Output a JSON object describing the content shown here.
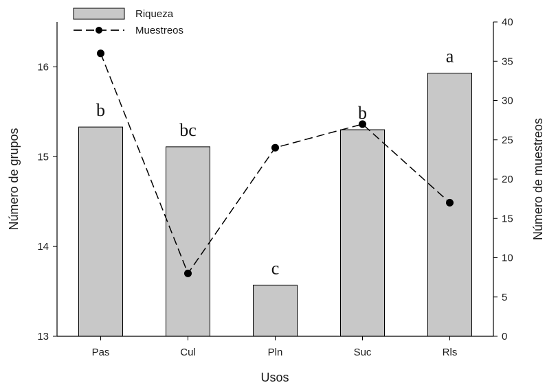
{
  "chart_data": {
    "type": "bar",
    "categories": [
      "Pas",
      "Cul",
      "Pln",
      "Suc",
      "Rls"
    ],
    "series": [
      {
        "name": "Riqueza",
        "type": "bar",
        "axis": "left",
        "values": [
          15.33,
          15.11,
          13.57,
          15.3,
          15.93
        ],
        "labels": [
          "b",
          "bc",
          "c",
          "b",
          "a"
        ],
        "color": "#c8c8c8"
      },
      {
        "name": "Muestreos",
        "type": "line",
        "axis": "right",
        "values": [
          36,
          8,
          24,
          27,
          17
        ],
        "color": "#000000",
        "style": "dashed"
      }
    ],
    "xlabel": "Usos",
    "ylabel": "Número de grupos",
    "y2label": "Número de muestreos",
    "ylim": [
      13,
      16.5
    ],
    "y2lim": [
      0,
      40
    ],
    "yticks": [
      13,
      14,
      15,
      16
    ],
    "y2ticks": [
      0,
      5,
      10,
      15,
      20,
      25,
      30,
      35,
      40
    ],
    "legend_position": "top-left",
    "grid": false
  }
}
